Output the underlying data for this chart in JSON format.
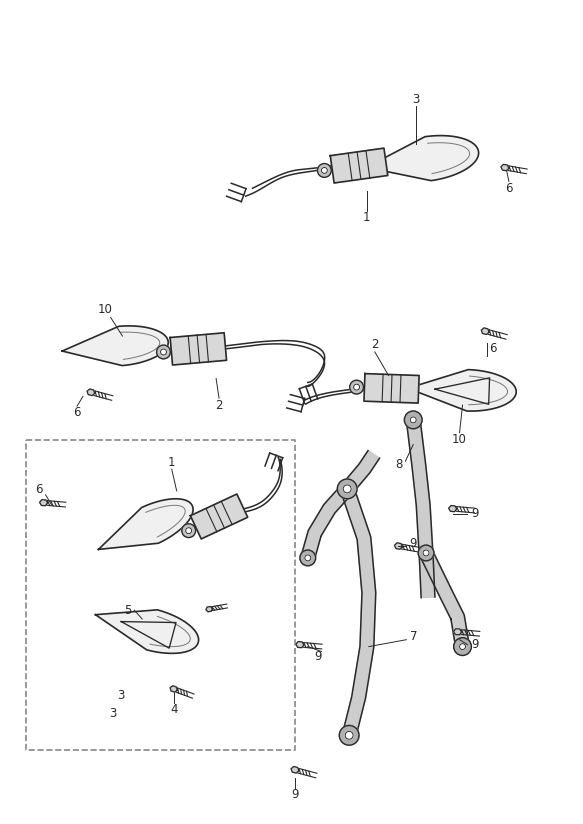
{
  "background_color": "#ffffff",
  "line_color": "#2a2a2a",
  "label_color": "#2a2a2a",
  "font_size": 8.5,
  "lw": 1.1
}
